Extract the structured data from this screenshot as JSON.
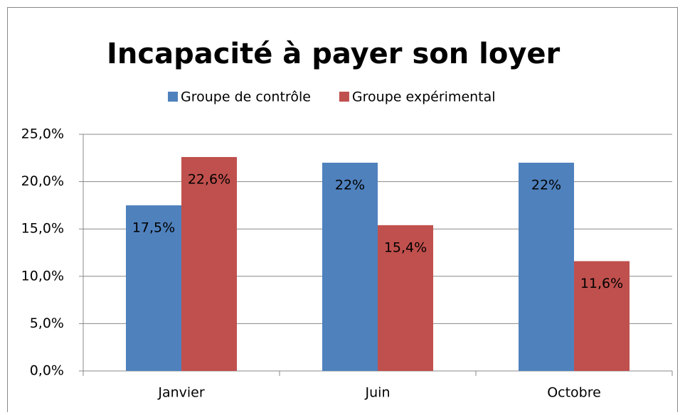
{
  "chart_data": {
    "type": "bar",
    "title": "Incapacité à payer son loyer",
    "categories": [
      "Janvier",
      "Juin",
      "Octobre"
    ],
    "series": [
      {
        "name": "Groupe de contrôle",
        "color": "#4f81bd",
        "values": [
          17.5,
          22,
          22
        ],
        "value_labels": [
          "17,5%",
          "22%",
          "22%"
        ]
      },
      {
        "name": "Groupe expérimental",
        "color": "#c0504d",
        "values": [
          22.6,
          15.4,
          11.6
        ],
        "value_labels": [
          "22,6%",
          "15,4%",
          "11,6%"
        ]
      }
    ],
    "ylim": [
      0,
      25
    ],
    "yticks": [
      {
        "value": 0,
        "label": "0,0%"
      },
      {
        "value": 5,
        "label": "5,0%"
      },
      {
        "value": 10,
        "label": "10,0%"
      },
      {
        "value": 15,
        "label": "15,0%"
      },
      {
        "value": 20,
        "label": "20,0%"
      },
      {
        "value": 25,
        "label": "25,0%"
      }
    ],
    "grid": true,
    "legend": "top"
  }
}
